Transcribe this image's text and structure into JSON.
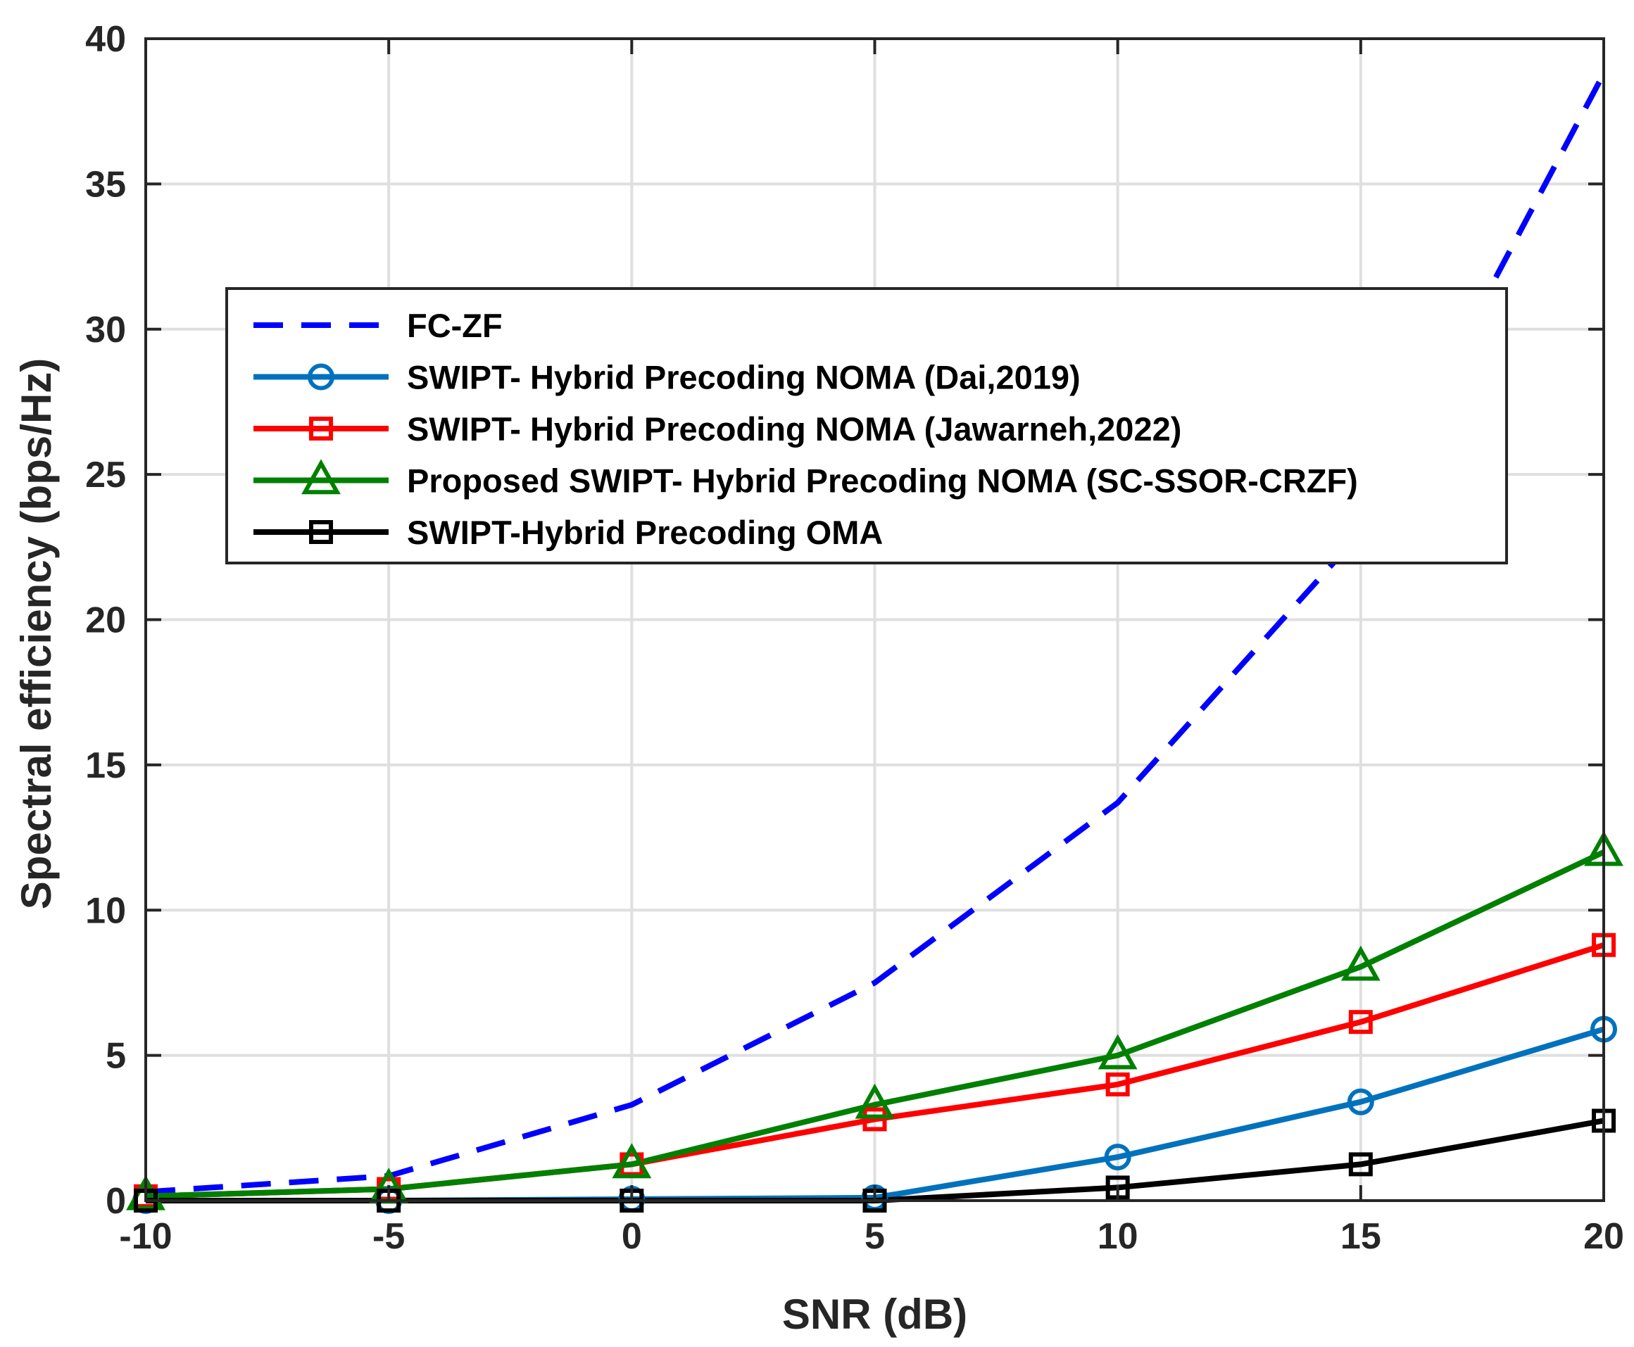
{
  "chart_data": {
    "type": "line",
    "title": "",
    "xlabel": "SNR (dB)",
    "ylabel": "Spectral efficiency (bps/Hz)",
    "x": [
      -10,
      -5,
      0,
      5,
      10,
      15,
      20
    ],
    "xlim": [
      -10,
      20
    ],
    "ylim": [
      0,
      40
    ],
    "xticks": [
      -10,
      -5,
      0,
      5,
      10,
      15,
      20
    ],
    "xtick_labels": [
      "-10",
      "-5",
      "0",
      "5",
      "10",
      "15",
      "20"
    ],
    "yticks": [
      0,
      5,
      10,
      15,
      20,
      25,
      30,
      35,
      40
    ],
    "ytick_labels": [
      "0",
      "5",
      "10",
      "15",
      "20",
      "25",
      "30",
      "35",
      "40"
    ],
    "grid": true,
    "legend_position": "upper-left inside",
    "series": [
      {
        "name": "FC-ZF",
        "values": [
          0.3,
          0.85,
          3.3,
          7.5,
          13.7,
          23.0,
          38.8
        ],
        "color": "#0000ff",
        "style": "dashed",
        "marker": "none"
      },
      {
        "name": "SWIPT- Hybrid Precoding NOMA (Dai,2019)",
        "values": [
          0.0,
          0.0,
          0.05,
          0.1,
          1.5,
          3.4,
          5.9
        ],
        "color": "#0072bd",
        "style": "solid",
        "marker": "circle"
      },
      {
        "name": "SWIPT- Hybrid Precoding NOMA (Jawarneh,2022)",
        "values": [
          0.15,
          0.4,
          1.25,
          2.8,
          4.0,
          6.15,
          8.8
        ],
        "color": "#ff0000",
        "style": "solid",
        "marker": "square"
      },
      {
        "name": "Proposed SWIPT- Hybrid Precoding NOMA (SC-SSOR-CRZF)",
        "values": [
          0.15,
          0.4,
          1.25,
          3.3,
          5.0,
          8.05,
          12.0
        ],
        "color": "#008000",
        "style": "solid",
        "marker": "triangle"
      },
      {
        "name": "SWIPT-Hybrid Precoding OMA",
        "values": [
          0.0,
          0.0,
          0.0,
          0.0,
          0.45,
          1.25,
          2.75
        ],
        "color": "#000000",
        "style": "solid",
        "marker": "square"
      }
    ]
  }
}
